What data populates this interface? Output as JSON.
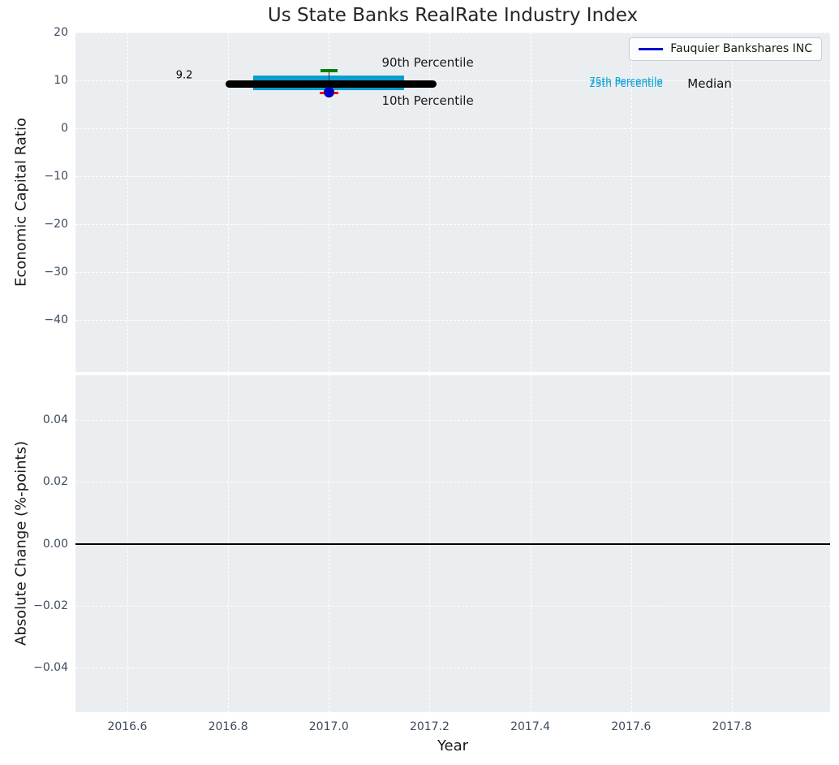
{
  "title": "Us State Banks RealRate Industry Index",
  "legend": {
    "items": [
      {
        "label": "Fauquier Bankshares INC",
        "color": "#0000cd"
      }
    ]
  },
  "colors": {
    "axes_background": "#ebeef0",
    "grid": "#ffffff",
    "tick_label": "#3d4a5c",
    "box_fill": "#0a9ed0",
    "median_line": "#000000",
    "whisker_line": "#333333",
    "cap_90": "#008000",
    "cap_10": "#ff0000",
    "company_dot": "#0000cd",
    "zero_line": "#000000",
    "annotation_cyan": "#0fa3d6"
  },
  "chart_data": [
    {
      "type": "box",
      "title": "Us State Banks RealRate Industry Index",
      "ylabel": "Economic Capital Ratio",
      "xlim": [
        2016.497,
        2017.995
      ],
      "ylim": [
        -50.85,
        20
      ],
      "grid": true,
      "y_ticks": [
        {
          "v": 20,
          "label": "20"
        },
        {
          "v": 10,
          "label": "10"
        },
        {
          "v": 0,
          "label": "0"
        },
        {
          "v": -10,
          "label": "−10"
        },
        {
          "v": -20,
          "label": "−20"
        },
        {
          "v": -30,
          "label": "−30"
        },
        {
          "v": -40,
          "label": "−40"
        }
      ],
      "box": {
        "x": 2017.0,
        "percentile_90": 12.0,
        "percentile_75": 11.1,
        "median": 9.2,
        "percentile_25": 8.0,
        "percentile_10": 7.35,
        "median_line_span": [
          2016.795,
          2017.213
        ],
        "box_span": [
          2016.85,
          2017.15
        ]
      },
      "company_point": {
        "name": "Fauquier Bankshares INC",
        "x": 2017.0,
        "y": 7.6
      },
      "annotations": [
        {
          "text": "9.2",
          "x": 2016.713,
          "y": 11.0,
          "color": "#000000",
          "size": 13,
          "align": "center"
        },
        {
          "text": "90th Percentile",
          "x": 2017.105,
          "y": 13.7,
          "color": "#1a1a1a",
          "size": 15,
          "align": "left"
        },
        {
          "text": "10th Percentile",
          "x": 2017.105,
          "y": 5.7,
          "color": "#1a1a1a",
          "size": 15,
          "align": "left"
        },
        {
          "text": "75th Percentile",
          "x": 2017.517,
          "y": 9.75,
          "color": "#0fa3d6",
          "size": 12,
          "align": "left"
        },
        {
          "text": "25th Percentile",
          "x": 2017.517,
          "y": 9.35,
          "color": "#0fa3d6",
          "size": 12,
          "align": "left"
        },
        {
          "text": "Median",
          "x": 2017.712,
          "y": 9.3,
          "color": "#111111",
          "size": 15,
          "align": "left"
        }
      ]
    },
    {
      "type": "line",
      "ylabel": "Absolute Change (%-points)",
      "xlabel": "Year",
      "xlim": [
        2016.497,
        2017.995
      ],
      "ylim": [
        -0.0546,
        0.0546
      ],
      "grid": true,
      "zero_line": 0.0,
      "x_ticks": [
        {
          "v": 2016.6,
          "label": "2016.6"
        },
        {
          "v": 2016.8,
          "label": "2016.8"
        },
        {
          "v": 2017.0,
          "label": "2017.0"
        },
        {
          "v": 2017.2,
          "label": "2017.2"
        },
        {
          "v": 2017.4,
          "label": "2017.4"
        },
        {
          "v": 2017.6,
          "label": "2017.6"
        },
        {
          "v": 2017.8,
          "label": "2017.8"
        }
      ],
      "y_ticks": [
        {
          "v": 0.04,
          "label": "0.04"
        },
        {
          "v": 0.02,
          "label": "0.02"
        },
        {
          "v": 0.0,
          "label": "0.00"
        },
        {
          "v": -0.02,
          "label": "−0.02"
        },
        {
          "v": -0.04,
          "label": "−0.04"
        }
      ],
      "series": []
    }
  ]
}
